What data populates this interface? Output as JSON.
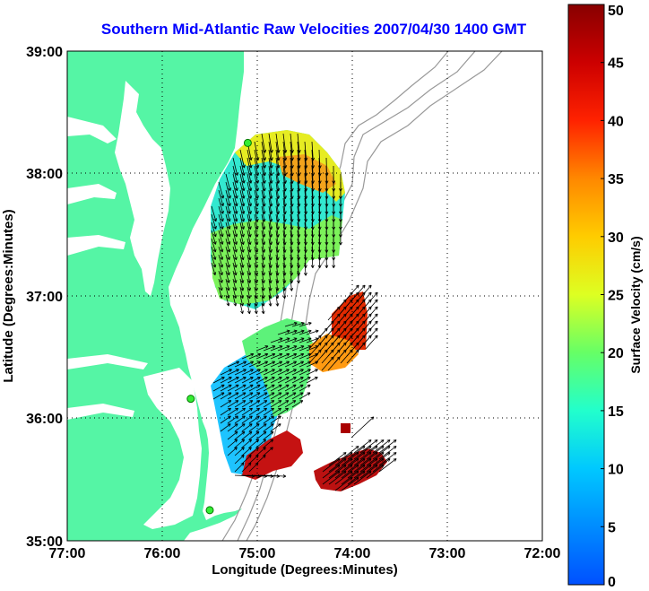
{
  "title": "Southern Mid-Atlantic Raw Velocities 2007/04/30 1400 GMT",
  "xlabel": "Longitude (Degrees:Minutes)",
  "ylabel": "Latitude (Degrees:Minutes)",
  "xticks": [
    "77:00",
    "76:00",
    "75:00",
    "74:00",
    "73:00",
    "72:00"
  ],
  "yticks": [
    "39:00",
    "38:00",
    "37:00",
    "36:00",
    "35:00"
  ],
  "colorbar": {
    "label": "Surface Velocity (cm/s)",
    "units": "cm/s",
    "min": 0,
    "max": 50,
    "ticks": [
      "0",
      "5",
      "10",
      "15",
      "20",
      "25",
      "30",
      "35",
      "40",
      "45",
      "50"
    ]
  },
  "colors": {
    "land": "#55f5a5",
    "water": "#ffffff",
    "title": "#0000ff",
    "station": "#33ee33",
    "bathymetry": "#999999"
  },
  "stations": [
    {
      "lon": -75.1,
      "lat": 38.25
    },
    {
      "lon": -75.7,
      "lat": 36.16
    },
    {
      "lon": -75.5,
      "lat": 35.25
    }
  ]
}
